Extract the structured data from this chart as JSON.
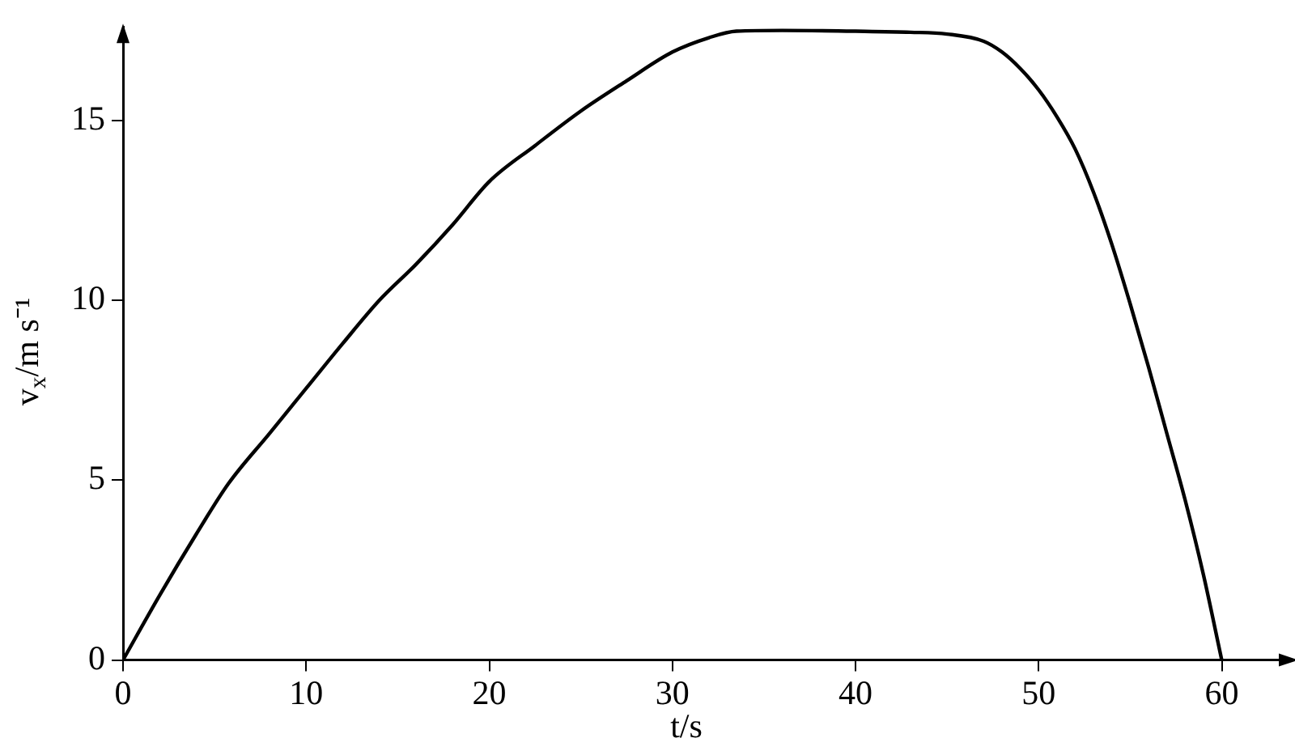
{
  "chart_data": {
    "type": "line",
    "xlabel": "t/s",
    "ylabel": "v$_{x}$/m s⁻¹",
    "x": [
      0,
      2,
      4,
      5.75,
      8,
      10,
      12,
      14,
      16,
      18,
      20,
      22.5,
      25,
      27.5,
      30,
      32,
      33.5,
      36,
      40,
      43,
      45,
      47,
      48,
      49,
      50,
      51,
      52,
      53,
      54,
      55,
      56,
      57,
      58,
      59,
      60
    ],
    "series": [
      {
        "color": "#000000",
        "values": [
          0,
          1.8,
          3.5,
          4.9,
          6.3,
          7.55,
          8.8,
          10,
          11,
          12.1,
          13.3,
          14.3,
          15.26,
          16.1,
          16.9,
          17.3,
          17.48,
          17.5,
          17.48,
          17.45,
          17.4,
          17.2,
          16.9,
          16.44,
          15.85,
          15.1,
          14.2,
          13,
          11.55,
          9.9,
          8.15,
          6.3,
          4.45,
          2.37,
          0
        ]
      }
    ],
    "xlim": [
      0,
      64
    ],
    "xticks": [
      0,
      10,
      20,
      30,
      40,
      50,
      60
    ],
    "ylim": [
      0,
      17.6
    ],
    "yticks": [
      0,
      5,
      10,
      15
    ],
    "grid": false,
    "legend": false,
    "marker": "none",
    "line_style": "solid"
  }
}
